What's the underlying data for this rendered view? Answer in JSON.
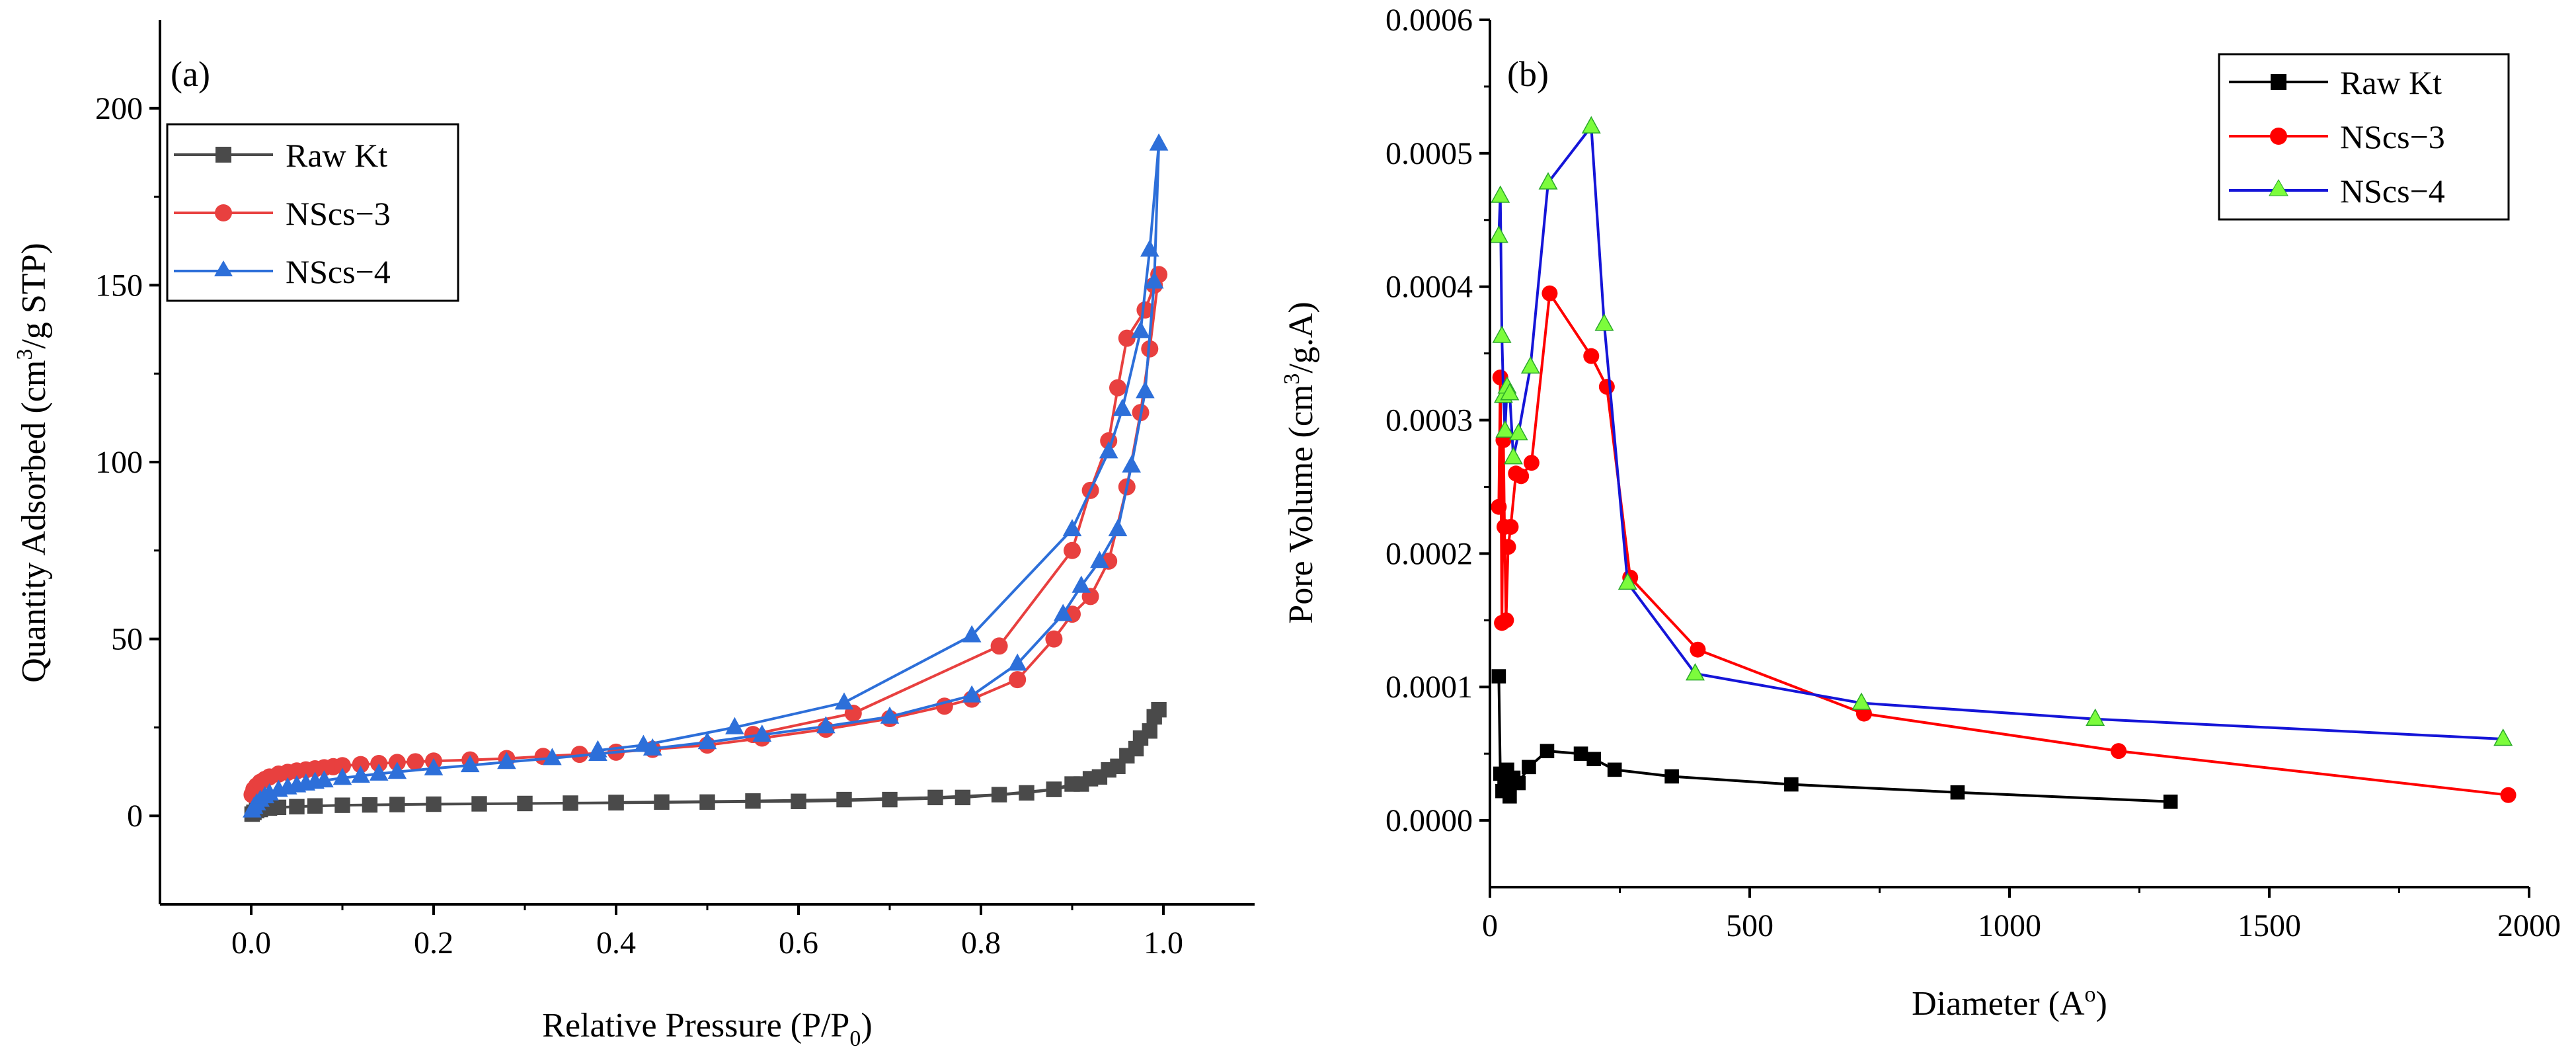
{
  "figure": {
    "panels": [
      "(a)",
      "(b)"
    ]
  },
  "chart_data": [
    {
      "panel": "(a)",
      "type": "line",
      "title": "",
      "xlabel": "Relative Pressure (P/P0)",
      "xlabel_main": "Relative Pressure (P/P",
      "xlabel_sub": "0",
      "xlabel_end": ")",
      "ylabel": "Quantity Adsorbed (cm3/g STP)",
      "ylabel_main": "Quantity Adsorbed (cm",
      "ylabel_sup": "3",
      "ylabel_end": "/g STP)",
      "xlim": [
        -0.1,
        1.1
      ],
      "ylim": [
        -25,
        225
      ],
      "xticks": [
        0.0,
        0.2,
        0.4,
        0.6,
        0.8,
        1.0
      ],
      "xtick_labels": [
        "0.0",
        "0.2",
        "0.4",
        "0.6",
        "0.8",
        "1.0"
      ],
      "yticks": [
        0,
        50,
        100,
        150,
        200
      ],
      "ytick_labels": [
        "0",
        "50",
        "100",
        "150",
        "200"
      ],
      "legend_position": "top-left",
      "series": [
        {
          "name": "Raw Kt",
          "color": "#4a4a4a",
          "marker": "square",
          "x": [
            0.001,
            0.003,
            0.006,
            0.01,
            0.02,
            0.03,
            0.05,
            0.07,
            0.1,
            0.13,
            0.16,
            0.2,
            0.25,
            0.3,
            0.35,
            0.4,
            0.5,
            0.6,
            0.7,
            0.78,
            0.85,
            0.88,
            0.9,
            0.92,
            0.94,
            0.96,
            0.975,
            0.99,
            0.995,
            0.985,
            0.97,
            0.95,
            0.93,
            0.91,
            0.88,
            0.82,
            0.75,
            0.65,
            0.55,
            0.45,
            0.4
          ],
          "y": [
            0.5,
            1.0,
            1.5,
            1.8,
            2.2,
            2.4,
            2.6,
            2.8,
            3.0,
            3.1,
            3.2,
            3.3,
            3.4,
            3.5,
            3.6,
            3.7,
            3.9,
            4.1,
            4.6,
            5.2,
            6.5,
            7.5,
            9.0,
            10.5,
            13.0,
            17.0,
            22.0,
            28.0,
            30.0,
            24.0,
            19.0,
            14.0,
            11.0,
            9.0,
            7.5,
            6.0,
            5.2,
            4.6,
            4.2,
            3.9,
            3.8
          ]
        },
        {
          "name": "NScs−3",
          "color": "#e8403f",
          "marker": "circle",
          "x": [
            0.001,
            0.003,
            0.006,
            0.01,
            0.015,
            0.02,
            0.03,
            0.04,
            0.05,
            0.06,
            0.07,
            0.08,
            0.09,
            0.1,
            0.12,
            0.14,
            0.16,
            0.18,
            0.2,
            0.24,
            0.28,
            0.32,
            0.36,
            0.4,
            0.44,
            0.5,
            0.56,
            0.63,
            0.7,
            0.76,
            0.79,
            0.84,
            0.88,
            0.9,
            0.92,
            0.94,
            0.96,
            0.975,
            0.985,
            0.995,
            0.99,
            0.98,
            0.96,
            0.95,
            0.94,
            0.92,
            0.9,
            0.82,
            0.66,
            0.55
          ],
          "y": [
            6.0,
            7.5,
            8.5,
            9.5,
            10.3,
            11.0,
            11.8,
            12.3,
            12.7,
            13.0,
            13.3,
            13.6,
            13.9,
            14.2,
            14.5,
            14.8,
            15.1,
            15.3,
            15.5,
            15.8,
            16.2,
            16.8,
            17.4,
            18.0,
            18.8,
            20.0,
            22.0,
            24.5,
            27.5,
            31.0,
            33.0,
            38.5,
            50.0,
            57.0,
            62.0,
            72.0,
            93.0,
            114.0,
            132.0,
            153.0,
            150.0,
            143.0,
            135.0,
            121.0,
            106.0,
            92.0,
            75.0,
            48.0,
            29.0,
            23.0
          ]
        },
        {
          "name": "NScs−4",
          "color": "#2d6fd9",
          "marker": "triangle",
          "x": [
            0.001,
            0.003,
            0.006,
            0.01,
            0.015,
            0.02,
            0.03,
            0.04,
            0.05,
            0.06,
            0.07,
            0.08,
            0.1,
            0.12,
            0.14,
            0.16,
            0.2,
            0.24,
            0.28,
            0.33,
            0.38,
            0.44,
            0.5,
            0.56,
            0.63,
            0.7,
            0.79,
            0.84,
            0.89,
            0.91,
            0.93,
            0.95,
            0.965,
            0.98,
            0.99,
            0.995,
            0.985,
            0.975,
            0.955,
            0.94,
            0.9,
            0.79,
            0.65,
            0.53,
            0.43,
            0.38
          ],
          "y": [
            1.5,
            2.5,
            3.5,
            4.5,
            5.5,
            6.3,
            7.3,
            8.0,
            8.6,
            9.1,
            9.6,
            10.0,
            10.7,
            11.3,
            11.9,
            12.4,
            13.4,
            14.3,
            15.2,
            16.3,
            17.5,
            19.0,
            20.8,
            22.9,
            25.3,
            28.0,
            34.0,
            43.0,
            57.0,
            65.0,
            72.0,
            81.0,
            99.0,
            120.0,
            151.0,
            190.0,
            160.0,
            137.0,
            115.0,
            103.0,
            81.0,
            51.0,
            32.0,
            25.0,
            20.0,
            18.5
          ]
        }
      ]
    },
    {
      "panel": "(b)",
      "type": "line",
      "title": "",
      "xlabel": "Diameter (A°)",
      "xlabel_main": "Diameter (A",
      "xlabel_sup": "o",
      "xlabel_end": ")",
      "ylabel": "Pore Volume (cm3/g.A)",
      "ylabel_main": "Pore Volume (cm",
      "ylabel_sup": "3",
      "ylabel_end": "/g.A)",
      "xlim": [
        0,
        2000
      ],
      "ylim": [
        -5e-05,
        0.0006
      ],
      "xticks": [
        0,
        500,
        1000,
        1500,
        2000
      ],
      "xtick_labels": [
        "0",
        "500",
        "1000",
        "1500",
        "2000"
      ],
      "yticks": [
        0,
        0.0001,
        0.0002,
        0.0003,
        0.0004,
        0.0005,
        0.0006
      ],
      "ytick_labels": [
        "0.0000",
        "0.0001",
        "0.0002",
        "0.0003",
        "0.0004",
        "0.0005",
        "0.0006"
      ],
      "legend_position": "top-right",
      "series": [
        {
          "name": "Raw Kt",
          "color": "#000000",
          "marker": "square",
          "x": [
            17,
            20,
            24,
            28,
            33,
            38,
            45,
            55,
            75,
            110,
            175,
            200,
            240,
            350,
            580,
            900,
            1310
          ],
          "y": [
            0.000108,
            3.5e-05,
            2.2e-05,
            2.8e-05,
            3.8e-05,
            1.8e-05,
            3.2e-05,
            2.8e-05,
            4e-05,
            5.2e-05,
            5e-05,
            4.6e-05,
            3.8e-05,
            3.3e-05,
            2.7e-05,
            2.1e-05,
            1.4e-05
          ]
        },
        {
          "name": "NScs−3",
          "color": "#ff0000",
          "marker": "circle",
          "x": [
            17,
            20,
            23,
            26,
            28,
            31,
            35,
            40,
            50,
            60,
            80,
            115,
            195,
            225,
            270,
            400,
            720,
            1210,
            1960
          ],
          "y": [
            0.000235,
            0.000332,
            0.000148,
            0.000285,
            0.00022,
            0.00015,
            0.000205,
            0.00022,
            0.00026,
            0.000258,
            0.000268,
            0.000395,
            0.000348,
            0.000325,
            0.000182,
            0.000128,
            8e-05,
            5.2e-05,
            1.9e-05
          ]
        },
        {
          "name": "NScs−4",
          "color": "#1515d8",
          "marker": "triangle",
          "x": [
            17,
            20,
            23,
            26,
            29,
            33,
            38,
            45,
            55,
            78,
            112,
            195,
            220,
            265,
            395,
            715,
            1165,
            1950
          ],
          "y": [
            0.000438,
            0.000468,
            0.000363,
            0.000318,
            0.000292,
            0.000325,
            0.00032,
            0.000272,
            0.00029,
            0.00034,
            0.000478,
            0.00052,
            0.000372,
            0.000178,
            0.00011,
            8.8e-05,
            7.6e-05,
            6.1e-05
          ]
        }
      ]
    }
  ]
}
